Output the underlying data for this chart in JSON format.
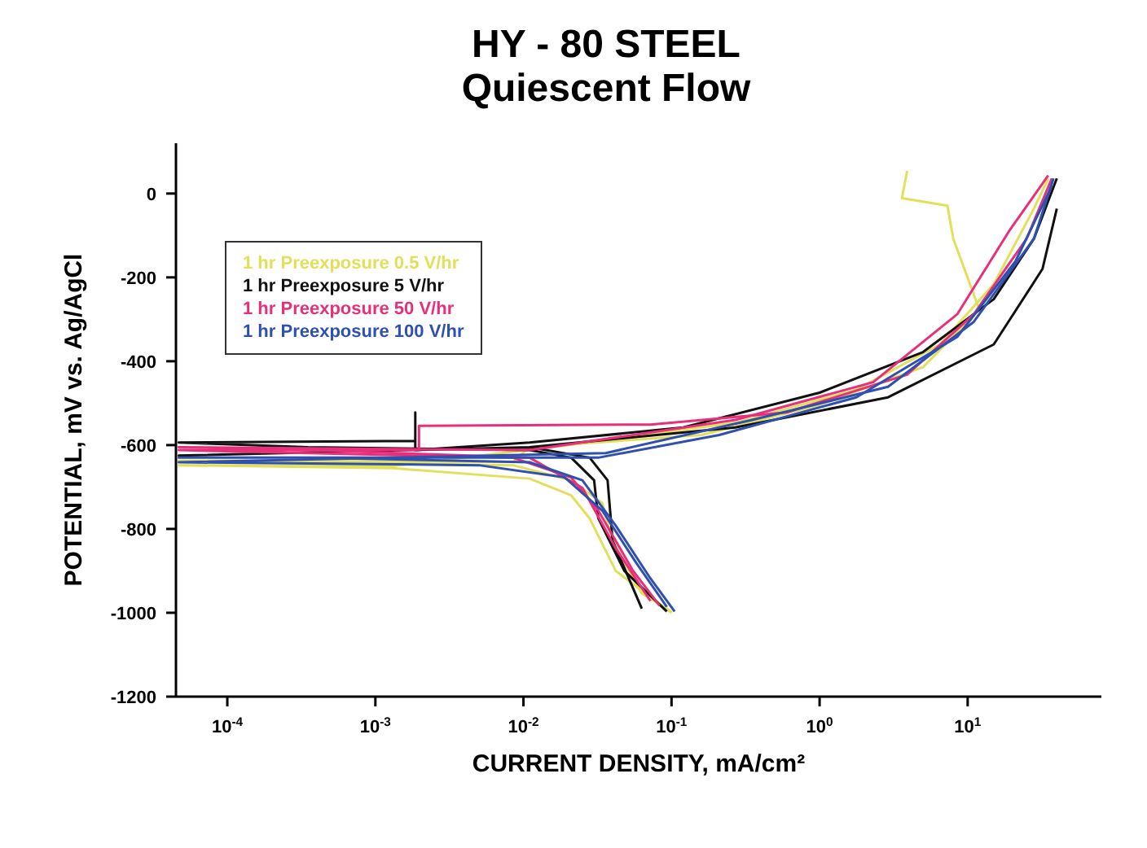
{
  "chart_data": {
    "type": "line",
    "title": "HY - 80 STEEL",
    "subtitle": "Quiescent Flow",
    "xlabel": "CURRENT DENSITY, mA/cm²",
    "ylabel": "POTENTIAL, mV vs. Ag/AgCl",
    "log": "x",
    "xlim": [
      4.5e-05,
      80
    ],
    "xticks": [
      {
        "value": 0.0001,
        "label": "10$^{-4}$"
      },
      {
        "value": 0.001,
        "label": "10$^{-3}$"
      },
      {
        "value": 0.01,
        "label": "10$^{-2}$"
      },
      {
        "value": 0.1,
        "label": "10$^{-1}$"
      },
      {
        "value": 1,
        "label": "10$^{0}$"
      },
      {
        "value": 10,
        "label": "10$^{1}$"
      }
    ],
    "ylim": [
      -1200,
      120
    ],
    "yticks": [
      0,
      -200,
      -400,
      -600,
      -800,
      -1000,
      -1200
    ],
    "grid": false,
    "legend": "top left",
    "marker": "none",
    "line_style": "solid",
    "series": [
      {
        "name": "1 hr Preexposure 0.5 V/hr",
        "color": "#e2e05a",
        "x": [
          0.1,
          0.042,
          0.028,
          0.021,
          0.011,
          0.0013,
          4.7e-05,
          0.0013,
          0.019,
          0.27,
          1.77,
          6.5,
          15,
          28,
          35
        ],
        "values": [
          -1000,
          -900,
          -775,
          -720,
          -680,
          -655,
          -648,
          -650,
          -601,
          -547,
          -468,
          -360,
          -216,
          -36,
          36
        ]
      },
      {
        "color": "#e2e05a",
        "x": [
          0.1,
          0.063,
          0.04,
          0.034,
          0.021,
          0.0085,
          4.7e-05,
          0.0085,
          0.011,
          0.16,
          1,
          5,
          12,
          8,
          7.3,
          3.6,
          3.9
        ],
        "values": [
          -997,
          -954,
          -828,
          -738,
          -684,
          -648,
          -637,
          -640,
          -605,
          -576,
          -504,
          -414,
          -277,
          -108,
          -29,
          -11,
          54
        ]
      },
      {
        "name": "1 hr Preexposure 5 V/hr",
        "color": "#111111",
        "x": [
          0.093,
          0.048,
          0.032,
          0.03,
          0.021,
          0.011,
          0.00035,
          4.7e-05,
          0.00186,
          0.00186,
          0.00186,
          0.011,
          0.12,
          1,
          5,
          15,
          28,
          40
        ],
        "values": [
          -997,
          -900,
          -774,
          -684,
          -630,
          -612,
          -605,
          -594,
          -590,
          -522,
          -612,
          -594,
          -558,
          -475,
          -378,
          -252,
          -108,
          36
        ]
      },
      {
        "color": "#111111",
        "x": [
          0.063,
          0.04,
          0.037,
          0.028,
          0.011,
          4.7e-05,
          0.011,
          0.27,
          2.9,
          15,
          32,
          40
        ],
        "values": [
          -990,
          -828,
          -684,
          -630,
          -605,
          -625,
          -605,
          -558,
          -486,
          -360,
          -180,
          -36
        ]
      },
      {
        "name": "1 hr Preexposure 50 V/hr",
        "color": "#e8307a",
        "x": [
          0.083,
          0.055,
          0.032,
          0.021,
          0.0085,
          0.00035,
          4.7e-05,
          0.00197,
          0.00197,
          0.072,
          0.6,
          3.9,
          11,
          25,
          37
        ],
        "values": [
          -983,
          -900,
          -756,
          -677,
          -630,
          -619,
          -612,
          -612,
          -554,
          -551,
          -522,
          -432,
          -288,
          -108,
          36
        ]
      },
      {
        "color": "#e8307a",
        "x": [
          0.072,
          0.042,
          0.025,
          0.011,
          0.00035,
          4.7e-05,
          0.011,
          0.27,
          2.3,
          8.5,
          19,
          35
        ],
        "values": [
          -972,
          -846,
          -702,
          -630,
          -612,
          -605,
          -612,
          -540,
          -450,
          -288,
          -90,
          43
        ]
      },
      {
        "name": "1 hr Preexposure 100 V/hr",
        "color": "#3050b0",
        "x": [
          0.105,
          0.072,
          0.042,
          0.025,
          0.011,
          0.00035,
          4.7e-05,
          0.032,
          0.21,
          1.77,
          8.5,
          21,
          37
        ],
        "values": [
          -997,
          -918,
          -792,
          -684,
          -641,
          -630,
          -630,
          -630,
          -576,
          -486,
          -342,
          -162,
          18
        ]
      },
      {
        "color": "#3050b0",
        "x": [
          0.093,
          0.058,
          0.034,
          0.019,
          0.005,
          4.7e-05,
          0.036,
          0.35,
          2.9,
          11,
          28,
          38
        ],
        "values": [
          -986,
          -882,
          -756,
          -677,
          -648,
          -641,
          -619,
          -540,
          -461,
          -306,
          -108,
          36
        ]
      }
    ]
  }
}
